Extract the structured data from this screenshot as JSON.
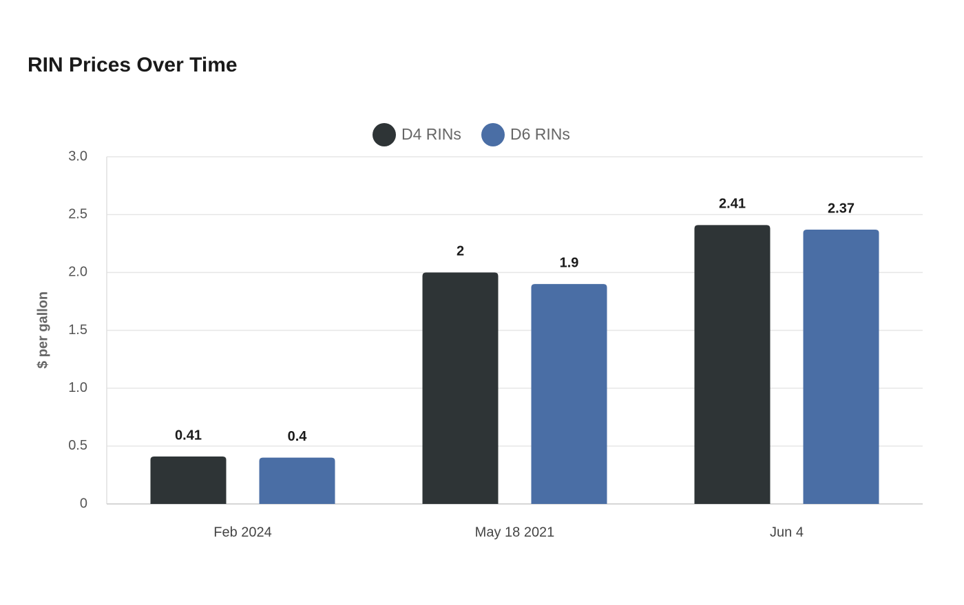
{
  "chart_data": {
    "type": "bar",
    "title": "RIN Prices Over Time",
    "y_label": "$ per gallon",
    "categories": [
      "Feb 2024",
      "May 18 2021",
      "Jun 4"
    ],
    "series": [
      {
        "name": "D4 RINs",
        "color": "#2e3436",
        "values": [
          0.41,
          2,
          2.41
        ]
      },
      {
        "name": "D6 RINs",
        "color": "#4a6ea5",
        "values": [
          0.4,
          1.9,
          2.37
        ]
      }
    ],
    "ylim": [
      0,
      3
    ],
    "yticks": [
      0,
      0.5,
      {
        "value": 1,
        "label": "1.0"
      },
      1.5,
      {
        "value": 2,
        "label": "2.0"
      },
      2.5,
      {
        "value": 3,
        "label": "3.0"
      }
    ],
    "grid": true,
    "legend": "top"
  }
}
